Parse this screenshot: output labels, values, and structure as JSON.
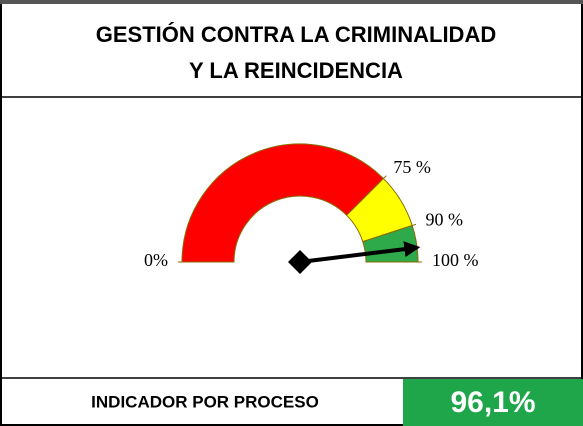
{
  "chart_data": {
    "type": "gauge",
    "title_lines": [
      "GESTIÓN CONTRA LA CRIMINALIDAD",
      "Y LA REINCIDENCIA"
    ],
    "lim": [
      0,
      100
    ],
    "ticks": [
      {
        "value": 0,
        "label": "0%"
      },
      {
        "value": 75,
        "label": "75 %"
      },
      {
        "value": 90,
        "label": "90 %"
      },
      {
        "value": 100,
        "label": "100 %"
      }
    ],
    "band_colors": [
      "#ff0000",
      "#ffff00",
      "#2eaa4a"
    ],
    "value": 96.1,
    "value_label": "96,1%",
    "footer_label": "INDICADOR POR PROCESO",
    "value_box_color": "#1fa64a"
  }
}
